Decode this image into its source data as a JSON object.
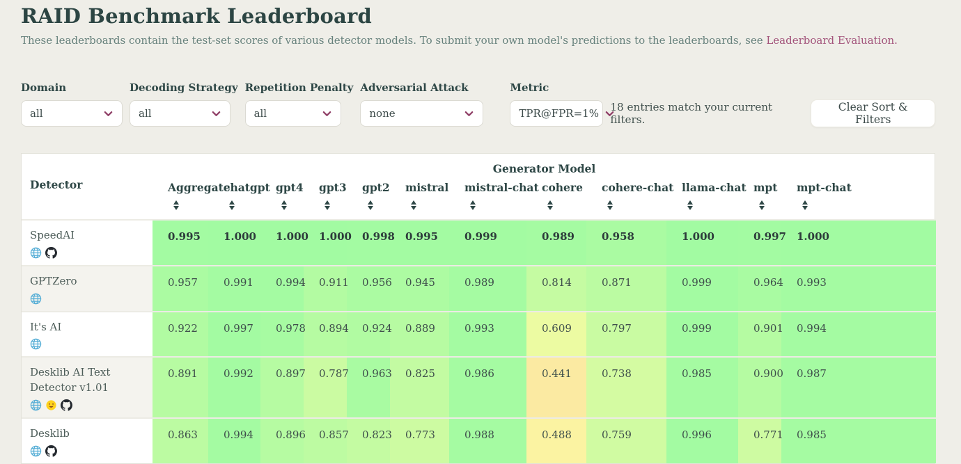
{
  "page": {
    "title": "RAID Benchmark Leaderboard",
    "subtitle_prefix": "These leaderboards contain the test-set scores of various detector models. To submit your own model's predictions to the leaderboards, see ",
    "subtitle_link_text": "Leaderboard Evaluation."
  },
  "filter_bar": {
    "filters": [
      {
        "id": "domain",
        "label": "Domain",
        "value": "all"
      },
      {
        "id": "decoding-strategy",
        "label": "Decoding Strategy",
        "value": "all"
      },
      {
        "id": "repetition-penalty",
        "label": "Repetition Penalty",
        "value": "all"
      },
      {
        "id": "adversarial-attack",
        "label": "Adversarial Attack",
        "value": "none"
      },
      {
        "id": "metric",
        "label": "Metric",
        "value": "TPR@FPR=1%"
      }
    ],
    "entries_text": "18 entries match your current filters.",
    "clear_button_label": "Clear Sort & Filters"
  },
  "table": {
    "group_header": "Generator Model",
    "detector_header": "Detector",
    "columns": [
      "Aggregate",
      "chatgpt",
      "gpt4",
      "gpt3",
      "gpt2",
      "mistral",
      "mistral-chat",
      "cohere",
      "cohere-chat",
      "llama-chat",
      "mpt",
      "mpt-chat"
    ],
    "rows": [
      {
        "name": "SpeedAI",
        "links": [
          "website",
          "github"
        ],
        "bold": true,
        "values": [
          "0.995",
          "1.000",
          "1.000",
          "1.000",
          "0.998",
          "0.995",
          "0.999",
          "0.989",
          "0.958",
          "1.000",
          "0.997",
          "1.000"
        ]
      },
      {
        "name": "GPTZero",
        "links": [
          "website"
        ],
        "bold": false,
        "values": [
          "0.957",
          "0.991",
          "0.994",
          "0.911",
          "0.956",
          "0.945",
          "0.989",
          "0.814",
          "0.871",
          "0.999",
          "0.964",
          "0.993"
        ]
      },
      {
        "name": "It's AI",
        "links": [
          "website"
        ],
        "bold": false,
        "values": [
          "0.922",
          "0.997",
          "0.978",
          "0.894",
          "0.924",
          "0.889",
          "0.993",
          "0.609",
          "0.797",
          "0.999",
          "0.901",
          "0.994"
        ]
      },
      {
        "name": "Desklib AI Text Detector v1.01",
        "links": [
          "website",
          "huggingface",
          "github"
        ],
        "bold": false,
        "values": [
          "0.891",
          "0.992",
          "0.897",
          "0.787",
          "0.963",
          "0.825",
          "0.986",
          "0.441",
          "0.738",
          "0.985",
          "0.900",
          "0.987"
        ]
      },
      {
        "name": "Desklib",
        "links": [
          "website",
          "github"
        ],
        "bold": false,
        "values": [
          "0.863",
          "0.994",
          "0.896",
          "0.857",
          "0.823",
          "0.773",
          "0.988",
          "0.488",
          "0.759",
          "0.996",
          "0.771",
          "0.985"
        ]
      }
    ]
  },
  "colors": {
    "heading": "#2e4746",
    "link": "#a2527a",
    "chevron": "#8f3e66",
    "scale_high_green": "#a6fca6",
    "scale_low_yellow": "#f8e6a0",
    "globe_icon_blue": "#56aed6",
    "huggingface_yellow": "#ffd21e",
    "github_black": "#24292f"
  }
}
